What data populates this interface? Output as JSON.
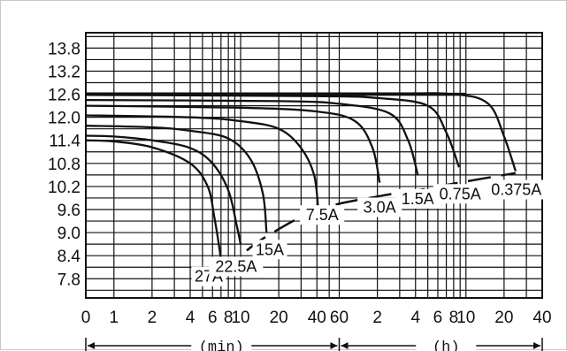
{
  "chart_data": {
    "type": "line",
    "title": "",
    "xlabel": "",
    "ylabel": "",
    "x_scale": "log",
    "y_ticks": [
      "13.8",
      "13.2",
      "12.6",
      "12.0",
      "11.4",
      "10.8",
      "10.2",
      "9.6",
      "9.0",
      "8.4",
      "7.8"
    ],
    "y_tick_values": [
      13.8,
      13.2,
      12.6,
      12.0,
      11.4,
      10.8,
      10.2,
      9.6,
      9.0,
      8.4,
      7.8
    ],
    "x_ticks": [
      {
        "label": "0",
        "minutes": 0.6
      },
      {
        "label": "1",
        "minutes": 1
      },
      {
        "label": "2",
        "minutes": 2
      },
      {
        "label": "4",
        "minutes": 4
      },
      {
        "label": "6",
        "minutes": 6
      },
      {
        "label": "8",
        "minutes": 8
      },
      {
        "label": "10",
        "minutes": 10
      },
      {
        "label": "20",
        "minutes": 20
      },
      {
        "label": "40",
        "minutes": 40
      },
      {
        "label": "60",
        "minutes": 60
      },
      {
        "label": "2",
        "minutes": 120
      },
      {
        "label": "4",
        "minutes": 240
      },
      {
        "label": "6",
        "minutes": 360
      },
      {
        "label": "8",
        "minutes": 480
      },
      {
        "label": "10",
        "minutes": 600
      },
      {
        "label": "20",
        "minutes": 1200
      },
      {
        "label": "40",
        "minutes": 2400
      }
    ],
    "x_unit_labels": [
      "(min)",
      "(h)"
    ],
    "series": [
      {
        "name": "27A",
        "x": [
          0.6,
          1,
          2,
          4,
          5.5,
          6.2,
          6.8,
          7.1
        ],
        "y": [
          11.4,
          11.37,
          11.22,
          10.8,
          10.2,
          9.4,
          8.6,
          8.1
        ]
      },
      {
        "name": "22.5A",
        "x": [
          0.6,
          1,
          2,
          4,
          6,
          8,
          9.3,
          10
        ],
        "y": [
          11.52,
          11.5,
          11.4,
          11.2,
          10.8,
          10.1,
          9.2,
          8.7
        ]
      },
      {
        "name": "15A",
        "x": [
          0.6,
          2,
          4,
          8,
          12,
          15,
          16
        ],
        "y": [
          11.78,
          11.74,
          11.65,
          11.45,
          10.9,
          10.0,
          9.0
        ]
      },
      {
        "name": "7.5A",
        "x": [
          0.6,
          4,
          10,
          20,
          30,
          38,
          41
        ],
        "y": [
          12.05,
          12.0,
          11.9,
          11.7,
          11.2,
          10.5,
          9.6
        ]
      },
      {
        "name": "3.0A",
        "x": [
          0.6,
          10,
          40,
          80,
          110,
          125
        ],
        "y": [
          12.3,
          12.25,
          12.15,
          11.9,
          11.2,
          10.3
        ]
      },
      {
        "name": "1.5A",
        "x": [
          0.6,
          20,
          60,
          150,
          210,
          250
        ],
        "y": [
          12.45,
          12.42,
          12.35,
          12.1,
          11.4,
          10.5
        ]
      },
      {
        "name": "0.75A",
        "x": [
          0.6,
          40,
          120,
          300,
          420,
          530
        ],
        "y": [
          12.58,
          12.55,
          12.5,
          12.3,
          11.6,
          10.7
        ]
      },
      {
        "name": "0.375A",
        "x": [
          0.6,
          120,
          480,
          900,
          1200,
          1480
        ],
        "y": [
          12.62,
          12.62,
          12.6,
          12.35,
          11.5,
          10.6
        ]
      }
    ],
    "cutoff_curve": {
      "x": [
        7.1,
        10,
        16,
        41,
        125,
        250,
        530,
        1480
      ],
      "y": [
        7.95,
        8.4,
        8.9,
        9.6,
        9.95,
        10.1,
        10.3,
        10.55
      ]
    }
  }
}
